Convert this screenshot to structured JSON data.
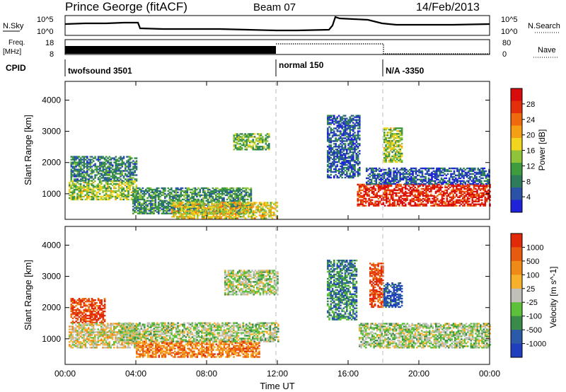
{
  "header": {
    "station": "Prince George (fitACF)",
    "beam": "Beam 07",
    "date": "14/Feb/2013"
  },
  "panels": {
    "nsky_label": "N.Sky",
    "nsky_ticks": [
      "10^5",
      "10^0"
    ],
    "nsearch_label": "N.Search",
    "freq_label_1": "Freq.",
    "freq_label_2": "[MHz]",
    "freq_ticks": [
      "18",
      "8"
    ],
    "nave_label": "Nave",
    "nave_ticks": [
      "80",
      "0"
    ],
    "cpid_label": "CPID",
    "cpid_segments": [
      {
        "label": "twofsound 3501",
        "start_hour": 0
      },
      {
        "label": "normal 150",
        "start_hour": 12
      },
      {
        "label": "N/A -3350",
        "start_hour": 18
      }
    ]
  },
  "chart_data": [
    {
      "type": "heatmap",
      "panel": "power",
      "ylabel": "Slant Range [km]",
      "xlim": [
        0,
        24
      ],
      "ylim": [
        180,
        4600
      ],
      "yticks": [
        1000,
        2000,
        3000,
        4000
      ],
      "colorbar": {
        "label": "Power [dB]",
        "ticks": [
          "4",
          "8",
          "12",
          "16",
          "20",
          "24",
          "28"
        ],
        "colors": [
          "#1e22d8",
          "#2a53a8",
          "#2e7d5a",
          "#3e9b3e",
          "#8fc43a",
          "#f2d51e",
          "#f5a014",
          "#ef6a0c",
          "#e3300a",
          "#d80c0c"
        ]
      },
      "regions": [
        {
          "t0": 0.2,
          "t1": 4.0,
          "r0": 800,
          "r1": 1400,
          "level": 0.45
        },
        {
          "t0": 0.3,
          "t1": 4.0,
          "r0": 1400,
          "r1": 2200,
          "level": 0.25
        },
        {
          "t0": 3.8,
          "t1": 10.5,
          "r0": 350,
          "r1": 1200,
          "level": 0.3
        },
        {
          "t0": 6.0,
          "t1": 12.0,
          "r0": 200,
          "r1": 700,
          "level": 0.55
        },
        {
          "t0": 9.5,
          "t1": 11.5,
          "r0": 2400,
          "r1": 2900,
          "level": 0.4
        },
        {
          "t0": 14.8,
          "t1": 16.6,
          "r0": 1500,
          "r1": 3500,
          "level": 0.15
        },
        {
          "t0": 16.5,
          "t1": 24.0,
          "r0": 600,
          "r1": 1300,
          "level": 0.9
        },
        {
          "t0": 17.0,
          "t1": 24.0,
          "r0": 1300,
          "r1": 1800,
          "level": 0.15
        },
        {
          "t0": 18.0,
          "t1": 19.0,
          "r0": 2000,
          "r1": 3100,
          "level": 0.45
        }
      ]
    },
    {
      "type": "heatmap",
      "panel": "velocity",
      "ylabel": "Slant Range [km]",
      "xlabel": "Time UT",
      "xlim": [
        0,
        24
      ],
      "ylim": [
        180,
        4600
      ],
      "yticks": [
        1000,
        2000,
        3000,
        4000
      ],
      "xticks": [
        "00:00",
        "04:00",
        "08:00",
        "12:00",
        "16:00",
        "20:00",
        "00:00"
      ],
      "colorbar": {
        "label": "Velocity [m s^-1]",
        "ticks": [
          "1000",
          "500",
          "100",
          "25",
          "-25",
          "-100",
          "-500",
          "-1000"
        ],
        "colors": [
          "#1f3fbf",
          "#2a5aa8",
          "#3a8a4a",
          "#5cc03a",
          "#c0c0b8",
          "#f7b02a",
          "#f08a16",
          "#e85a0e",
          "#e22a0a"
        ]
      },
      "regions": [
        {
          "t0": 0.3,
          "t1": 2.2,
          "r0": 1500,
          "r1": 2300,
          "level": 0.92
        },
        {
          "t0": 0.2,
          "t1": 4.0,
          "r0": 700,
          "r1": 1500,
          "level": 0.55
        },
        {
          "t0": 4.0,
          "t1": 11.0,
          "r0": 400,
          "r1": 900,
          "level": 0.75
        },
        {
          "t0": 3.0,
          "t1": 12.0,
          "r0": 900,
          "r1": 1500,
          "level": 0.45
        },
        {
          "t0": 9.0,
          "t1": 12.0,
          "r0": 2400,
          "r1": 3200,
          "level": 0.45
        },
        {
          "t0": 14.8,
          "t1": 16.5,
          "r0": 1600,
          "r1": 3500,
          "level": 0.25
        },
        {
          "t0": 16.6,
          "t1": 24.0,
          "r0": 700,
          "r1": 1500,
          "level": 0.45
        },
        {
          "t0": 17.2,
          "t1": 18.0,
          "r0": 2000,
          "r1": 3400,
          "level": 0.9
        },
        {
          "t0": 18.0,
          "t1": 19.0,
          "r0": 2000,
          "r1": 2800,
          "level": 0.1
        }
      ]
    }
  ]
}
